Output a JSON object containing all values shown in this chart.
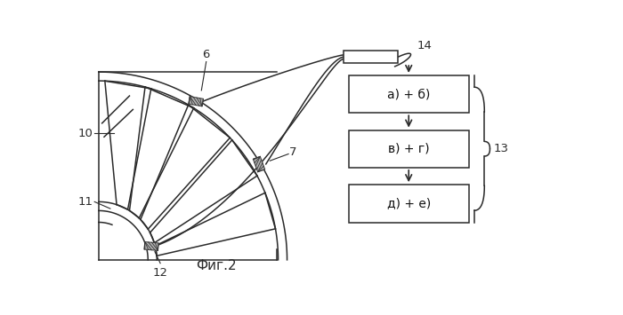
{
  "title": "Фиг.2",
  "label_6": "6",
  "label_7": "7",
  "label_10": "10",
  "label_11": "11",
  "label_12": "12",
  "label_13": "13",
  "label_14": "14",
  "box1_text": "а) + б)",
  "box2_text": "в) + г)",
  "box3_text": "д) + е)",
  "bg_color": "#ffffff",
  "line_color": "#2a2a2a",
  "fig_width": 7.0,
  "fig_height": 3.55
}
